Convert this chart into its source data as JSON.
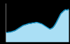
{
  "x": [
    0,
    1,
    2,
    3,
    4,
    5,
    6,
    7,
    8,
    9,
    10,
    11,
    12,
    13,
    14,
    15,
    16,
    17,
    18,
    19,
    20,
    21,
    22,
    23,
    24,
    25,
    26,
    27,
    28,
    29,
    30,
    31,
    32,
    33,
    34,
    35,
    36,
    37,
    38,
    39,
    40
  ],
  "y": [
    18,
    18,
    19,
    19,
    20,
    21,
    22,
    24,
    26,
    28,
    30,
    32,
    33,
    34,
    35,
    36,
    36,
    37,
    37,
    38,
    38,
    37,
    36,
    35,
    33,
    31,
    29,
    27,
    25,
    26,
    28,
    32,
    37,
    43,
    49,
    55,
    58,
    61,
    63,
    62,
    64
  ],
  "line_color": "#1a9fd4",
  "fill_color": "#aadff5",
  "background_color": "#000000",
  "plot_bg_color": "#000000",
  "ylim": [
    0,
    75
  ],
  "xlim": [
    0,
    40
  ]
}
